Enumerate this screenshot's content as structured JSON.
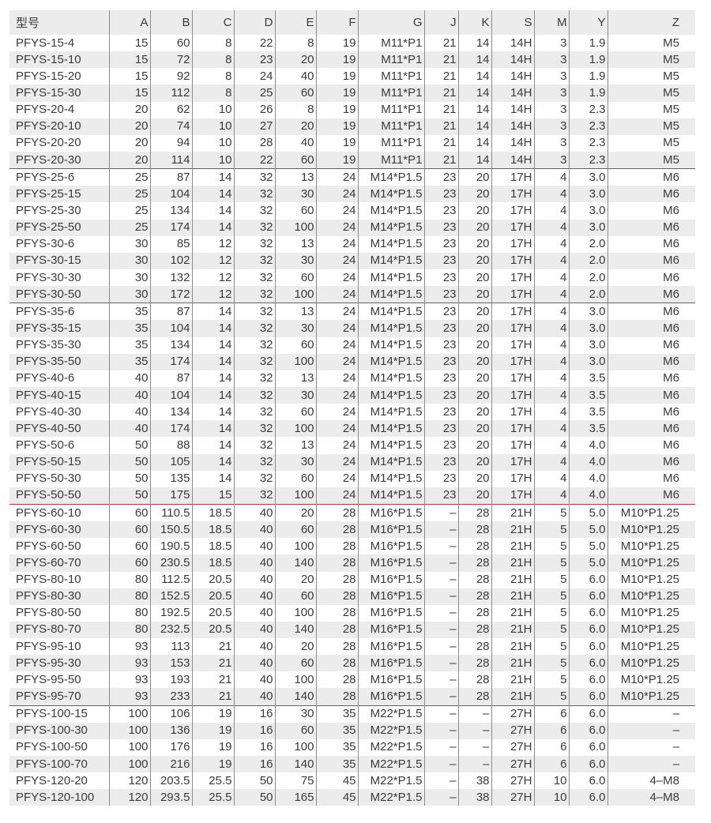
{
  "headers": [
    "型号",
    "A",
    "B",
    "C",
    "D",
    "E",
    "F",
    "G",
    "J",
    "K",
    "S",
    "M",
    "Y",
    "Z"
  ],
  "groups": [
    [
      [
        "PFYS-15-4",
        "15",
        "60",
        "8",
        "22",
        "8",
        "19",
        "M11*P1",
        "21",
        "14",
        "14H",
        "3",
        "1.9",
        "M5"
      ],
      [
        "PFYS-15-10",
        "15",
        "72",
        "8",
        "23",
        "20",
        "19",
        "M11*P1",
        "21",
        "14",
        "14H",
        "3",
        "1.9",
        "M5"
      ],
      [
        "PFYS-15-20",
        "15",
        "92",
        "8",
        "24",
        "40",
        "19",
        "M11*P1",
        "21",
        "14",
        "14H",
        "3",
        "1.9",
        "M5"
      ],
      [
        "PFYS-15-30",
        "15",
        "112",
        "8",
        "25",
        "60",
        "19",
        "M11*P1",
        "21",
        "14",
        "14H",
        "3",
        "1.9",
        "M5"
      ],
      [
        "PFYS-20-4",
        "20",
        "62",
        "10",
        "26",
        "8",
        "19",
        "M11*P1",
        "21",
        "14",
        "14H",
        "3",
        "2.3",
        "M5"
      ],
      [
        "PFYS-20-10",
        "20",
        "74",
        "10",
        "27",
        "20",
        "19",
        "M11*P1",
        "21",
        "14",
        "14H",
        "3",
        "2.3",
        "M5"
      ],
      [
        "PFYS-20-20",
        "20",
        "94",
        "10",
        "28",
        "40",
        "19",
        "M11*P1",
        "21",
        "14",
        "14H",
        "3",
        "2.3",
        "M5"
      ],
      [
        "PFYS-20-30",
        "20",
        "114",
        "10",
        "22",
        "60",
        "19",
        "M11*P1",
        "21",
        "14",
        "14H",
        "3",
        "2.3",
        "M5"
      ]
    ],
    [
      [
        "PFYS-25-6",
        "25",
        "87",
        "14",
        "32",
        "13",
        "24",
        "M14*P1.5",
        "23",
        "20",
        "17H",
        "4",
        "3.0",
        "M6"
      ],
      [
        "PFYS-25-15",
        "25",
        "104",
        "14",
        "32",
        "30",
        "24",
        "M14*P1.5",
        "23",
        "20",
        "17H",
        "4",
        "3.0",
        "M6"
      ],
      [
        "PFYS-25-30",
        "25",
        "134",
        "14",
        "32",
        "60",
        "24",
        "M14*P1.5",
        "23",
        "20",
        "17H",
        "4",
        "3.0",
        "M6"
      ],
      [
        "PFYS-25-50",
        "25",
        "174",
        "14",
        "32",
        "100",
        "24",
        "M14*P1.5",
        "23",
        "20",
        "17H",
        "4",
        "3.0",
        "M6"
      ],
      [
        "PFYS-30-6",
        "30",
        "85",
        "12",
        "32",
        "13",
        "24",
        "M14*P1.5",
        "23",
        "20",
        "17H",
        "4",
        "2.0",
        "M6"
      ],
      [
        "PFYS-30-15",
        "30",
        "102",
        "12",
        "32",
        "30",
        "24",
        "M14*P1.5",
        "23",
        "20",
        "17H",
        "4",
        "2.0",
        "M6"
      ],
      [
        "PFYS-30-30",
        "30",
        "132",
        "12",
        "32",
        "60",
        "24",
        "M14*P1.5",
        "23",
        "20",
        "17H",
        "4",
        "2.0",
        "M6"
      ],
      [
        "PFYS-30-50",
        "30",
        "172",
        "12",
        "32",
        "100",
        "24",
        "M14*P1.5",
        "23",
        "20",
        "17H",
        "4",
        "2.0",
        "M6"
      ]
    ],
    [
      [
        "PFYS-35-6",
        "35",
        "87",
        "14",
        "32",
        "13",
        "24",
        "M14*P1.5",
        "23",
        "20",
        "17H",
        "4",
        "3.0",
        "M6"
      ],
      [
        "PFYS-35-15",
        "35",
        "104",
        "14",
        "32",
        "30",
        "24",
        "M14*P1.5",
        "23",
        "20",
        "17H",
        "4",
        "3.0",
        "M6"
      ],
      [
        "PFYS-35-30",
        "35",
        "134",
        "14",
        "32",
        "60",
        "24",
        "M14*P1.5",
        "23",
        "20",
        "17H",
        "4",
        "3.0",
        "M6"
      ],
      [
        "PFYS-35-50",
        "35",
        "174",
        "14",
        "32",
        "100",
        "24",
        "M14*P1.5",
        "23",
        "20",
        "17H",
        "4",
        "3.0",
        "M6"
      ],
      [
        "PFYS-40-6",
        "40",
        "87",
        "14",
        "32",
        "13",
        "24",
        "M14*P1.5",
        "23",
        "20",
        "17H",
        "4",
        "3.5",
        "M6"
      ],
      [
        "PFYS-40-15",
        "40",
        "104",
        "14",
        "32",
        "30",
        "24",
        "M14*P1.5",
        "23",
        "20",
        "17H",
        "4",
        "3.5",
        "M6"
      ],
      [
        "PFYS-40-30",
        "40",
        "134",
        "14",
        "32",
        "60",
        "24",
        "M14*P1.5",
        "23",
        "20",
        "17H",
        "4",
        "3.5",
        "M6"
      ],
      [
        "PFYS-40-50",
        "40",
        "174",
        "14",
        "32",
        "100",
        "24",
        "M14*P1.5",
        "23",
        "20",
        "17H",
        "4",
        "3.5",
        "M6"
      ],
      [
        "PFYS-50-6",
        "50",
        "88",
        "14",
        "32",
        "13",
        "24",
        "M14*P1.5",
        "23",
        "20",
        "17H",
        "4",
        "4.0",
        "M6"
      ],
      [
        "PFYS-50-15",
        "50",
        "105",
        "14",
        "32",
        "30",
        "24",
        "M14*P1.5",
        "23",
        "20",
        "17H",
        "4",
        "4.0",
        "M6"
      ],
      [
        "PFYS-50-30",
        "50",
        "135",
        "14",
        "32",
        "60",
        "24",
        "M14*P1.5",
        "23",
        "20",
        "17H",
        "4",
        "4.0",
        "M6"
      ],
      [
        "PFYS-50-50",
        "50",
        "175",
        "15",
        "32",
        "100",
        "24",
        "M14*P1.5",
        "23",
        "20",
        "17H",
        "4",
        "4.0",
        "M6"
      ]
    ],
    [
      [
        "PFYS-60-10",
        "60",
        "110.5",
        "18.5",
        "40",
        "20",
        "28",
        "M16*P1.5",
        "–",
        "28",
        "21H",
        "5",
        "5.0",
        "M10*P1.25"
      ],
      [
        "PFYS-60-30",
        "60",
        "150.5",
        "18.5",
        "40",
        "60",
        "28",
        "M16*P1.5",
        "–",
        "28",
        "21H",
        "5",
        "5.0",
        "M10*P1.25"
      ],
      [
        "PFYS-60-50",
        "60",
        "190.5",
        "18.5",
        "40",
        "100",
        "28",
        "M16*P1.5",
        "–",
        "28",
        "21H",
        "5",
        "5.0",
        "M10*P1.25"
      ],
      [
        "PFYS-60-70",
        "60",
        "230.5",
        "18.5",
        "40",
        "140",
        "28",
        "M16*P1.5",
        "–",
        "28",
        "21H",
        "5",
        "5.0",
        "M10*P1.25"
      ],
      [
        "PFYS-80-10",
        "80",
        "112.5",
        "20.5",
        "40",
        "20",
        "28",
        "M16*P1.5",
        "–",
        "28",
        "21H",
        "5",
        "6.0",
        "M10*P1.25"
      ],
      [
        "PFYS-80-30",
        "80",
        "152.5",
        "20.5",
        "40",
        "60",
        "28",
        "M16*P1.5",
        "–",
        "28",
        "21H",
        "5",
        "6.0",
        "M10*P1.25"
      ],
      [
        "PFYS-80-50",
        "80",
        "192.5",
        "20.5",
        "40",
        "100",
        "28",
        "M16*P1.5",
        "–",
        "28",
        "21H",
        "5",
        "6.0",
        "M10*P1.25"
      ],
      [
        "PFYS-80-70",
        "80",
        "232.5",
        "20.5",
        "40",
        "140",
        "28",
        "M16*P1.5",
        "–",
        "28",
        "21H",
        "5",
        "6.0",
        "M10*P1.25"
      ],
      [
        "PFYS-95-10",
        "93",
        "113",
        "21",
        "40",
        "20",
        "28",
        "M16*P1.5",
        "–",
        "28",
        "21H",
        "5",
        "6.0",
        "M10*P1.25"
      ],
      [
        "PFYS-95-30",
        "93",
        "153",
        "21",
        "40",
        "60",
        "28",
        "M16*P1.5",
        "–",
        "28",
        "21H",
        "5",
        "6.0",
        "M10*P1.25"
      ],
      [
        "PFYS-95-50",
        "93",
        "193",
        "21",
        "40",
        "100",
        "28",
        "M16*P1.5",
        "–",
        "28",
        "21H",
        "5",
        "6.0",
        "M10*P1.25"
      ],
      [
        "PFYS-95-70",
        "93",
        "233",
        "21",
        "40",
        "140",
        "28",
        "M16*P1.5",
        "–",
        "28",
        "21H",
        "5",
        "6.0",
        "M10*P1.25"
      ]
    ],
    [
      [
        "PFYS-100-15",
        "100",
        "106",
        "19",
        "16",
        "30",
        "35",
        "M22*P1.5",
        "–",
        "–",
        "27H",
        "6",
        "6.0",
        "–"
      ],
      [
        "PFYS-100-30",
        "100",
        "136",
        "19",
        "16",
        "60",
        "35",
        "M22*P1.5",
        "–",
        "–",
        "27H",
        "6",
        "6.0",
        "–"
      ],
      [
        "PFYS-100-50",
        "100",
        "176",
        "19",
        "16",
        "100",
        "35",
        "M22*P1.5",
        "–",
        "–",
        "27H",
        "6",
        "6.0",
        "–"
      ],
      [
        "PFYS-100-70",
        "100",
        "216",
        "19",
        "16",
        "140",
        "35",
        "M22*P1.5",
        "–",
        "–",
        "27H",
        "6",
        "6.0",
        "–"
      ],
      [
        "PFYS-120-20",
        "120",
        "203.5",
        "25.5",
        "50",
        "75",
        "45",
        "M22*P1.5",
        "–",
        "38",
        "27H",
        "10",
        "6.0",
        "4–M8"
      ],
      [
        "PFYS-120-100",
        "120",
        "293.5",
        "25.5",
        "50",
        "165",
        "45",
        "M22*P1.5",
        "–",
        "38",
        "27H",
        "10",
        "6.0",
        "4–M8"
      ]
    ]
  ],
  "colors": {
    "separator": "#c0393f",
    "stripe": "#ececec",
    "text": "#3a3a3a"
  }
}
